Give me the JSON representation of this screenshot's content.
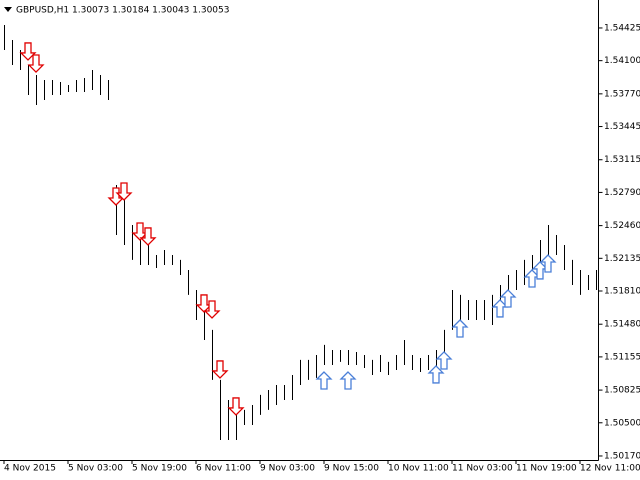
{
  "chart_data": {
    "type": "ohlc",
    "title": "GBPUSD,H1  1.30073 1.30184 1.30043 1.30053",
    "categories": [
      "4 Nov 2015",
      null,
      null,
      null,
      null,
      null,
      null,
      null,
      "5 Nov 03:00",
      null,
      null,
      null,
      null,
      null,
      null,
      null,
      "5 Nov 19:00",
      null,
      null,
      null,
      null,
      null,
      null,
      null,
      "6 Nov 11:00",
      null,
      null,
      null,
      null,
      null,
      null,
      null,
      "9 Nov 03:00",
      null,
      null,
      null,
      null,
      null,
      null,
      null,
      "9 Nov 15:00",
      null,
      null,
      null,
      null,
      null,
      null,
      null,
      "10 Nov 11:00",
      null,
      null,
      null,
      null,
      null,
      null,
      null,
      "11 Nov 03:00",
      null,
      null,
      null,
      null,
      null,
      null,
      null,
      "11 Nov 19:00",
      null,
      null,
      null,
      null,
      null,
      null,
      null,
      "12 Nov 11:00",
      null,
      null
    ],
    "high": [
      1.54455,
      1.54305,
      1.54206,
      1.54057,
      1.53957,
      1.53908,
      1.53908,
      1.53888,
      1.53858,
      1.53908,
      1.53928,
      1.54007,
      1.53957,
      1.53908,
      1.52864,
      1.52715,
      1.52466,
      1.52317,
      1.52268,
      1.52168,
      1.52218,
      1.52168,
      1.52119,
      1.52019,
      1.5182,
      1.51721,
      1.51423,
      1.50926,
      1.50727,
      1.50578,
      1.50628,
      1.50677,
      1.50777,
      1.50826,
      1.50876,
      1.50876,
      1.50975,
      1.51125,
      1.51125,
      1.51174,
      1.51274,
      1.51224,
      1.51224,
      1.51224,
      1.51204,
      1.51174,
      1.51125,
      1.51174,
      1.51105,
      1.51174,
      1.51323,
      1.51174,
      1.51144,
      1.51174,
      1.51224,
      1.51423,
      1.5182,
      1.51771,
      1.51721,
      1.51721,
      1.51721,
      1.51771,
      1.5187,
      1.51969,
      1.52019,
      1.52119,
      1.52168,
      1.52317,
      1.52466,
      1.52367,
      1.52268,
      1.52119,
      1.52019,
      1.51969,
      1.52019
    ],
    "low": [
      1.54206,
      1.54057,
      1.54007,
      1.53759,
      1.53659,
      1.53709,
      1.53759,
      1.53759,
      1.53789,
      1.53789,
      1.53789,
      1.53808,
      1.53759,
      1.53709,
      1.52367,
      1.52268,
      1.52119,
      1.52069,
      1.52069,
      1.52039,
      1.52069,
      1.52069,
      1.51969,
      1.51771,
      1.51522,
      1.51323,
      1.50926,
      1.50329,
      1.50329,
      1.50329,
      1.50478,
      1.50478,
      1.50578,
      1.50628,
      1.50677,
      1.50727,
      1.50727,
      1.50876,
      1.50926,
      1.50946,
      1.51075,
      1.51075,
      1.51105,
      1.51075,
      1.51075,
      1.51045,
      1.50975,
      1.51005,
      1.50975,
      1.51025,
      1.51075,
      1.51025,
      1.51005,
      1.51025,
      1.51045,
      1.51075,
      1.51423,
      1.51472,
      1.51522,
      1.51522,
      1.51522,
      1.51472,
      1.51572,
      1.51721,
      1.5182,
      1.5187,
      1.5192,
      1.52019,
      1.52168,
      1.52168,
      1.52019,
      1.5187,
      1.51771,
      1.5182,
      1.5182
    ],
    "color": "#000000",
    "sell_arrows": {
      "color": "#e00000",
      "bars": [
        3,
        4,
        14,
        15,
        17,
        18,
        25,
        26,
        27,
        29
      ],
      "prices": [
        1.54107,
        1.53987,
        1.52665,
        1.52715,
        1.52317,
        1.52268,
        1.51602,
        1.51542,
        1.50946,
        1.50578
      ]
    },
    "buy_arrows": {
      "color": "#4a7fd8",
      "bars": [
        40,
        43,
        54,
        55,
        57,
        62,
        63,
        66,
        67,
        68
      ],
      "prices": [
        1.51005,
        1.51005,
        1.51065,
        1.51204,
        1.51522,
        1.51721,
        1.5182,
        1.52019,
        1.52099,
        1.52168
      ]
    },
    "ylim": [
      1.5013,
      1.54703
    ],
    "yticks": [
      1.54425,
      {
        "value": 1.541,
        "label": "1.54100"
      },
      {
        "value": 1.5377,
        "label": "1.53770"
      },
      1.53445,
      1.53115,
      {
        "value": 1.5279,
        "label": "1.52790"
      },
      {
        "value": 1.5246,
        "label": "1.52460"
      },
      1.52135,
      {
        "value": 1.5181,
        "label": "1.51810"
      },
      {
        "value": 1.5148,
        "label": "1.51480"
      },
      1.51155,
      1.50825,
      {
        "value": 1.505,
        "label": "1.50500"
      },
      {
        "value": 1.5017,
        "label": "1.50170"
      }
    ]
  }
}
